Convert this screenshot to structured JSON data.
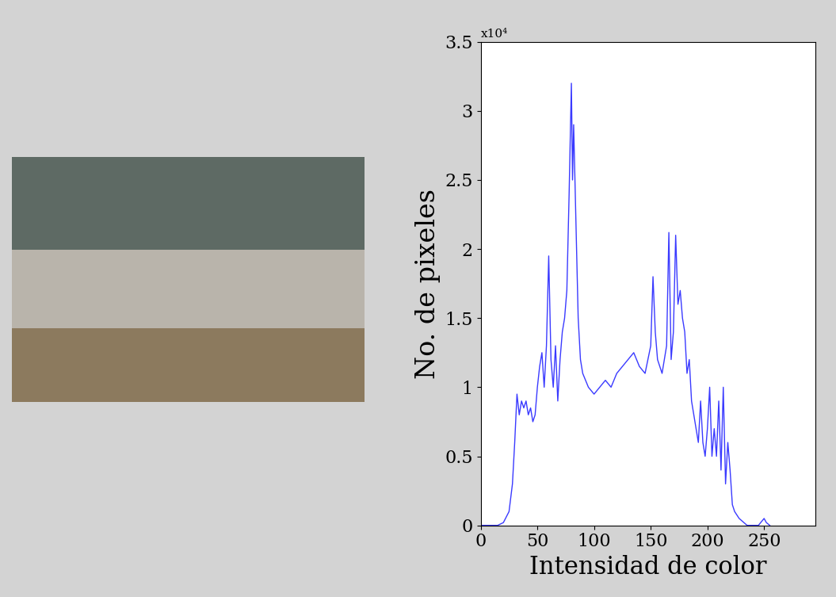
{
  "chart_data": {
    "type": "line",
    "x_label": "Intensidad de color",
    "y_label": "No. de pixeles",
    "annotation": "x10⁴",
    "color": "#3a3aff",
    "x": [
      0,
      5,
      10,
      15,
      20,
      25,
      28,
      30,
      32,
      34,
      36,
      38,
      40,
      42,
      44,
      46,
      48,
      50,
      52,
      54,
      56,
      58,
      60,
      62,
      64,
      66,
      68,
      70,
      72,
      74,
      76,
      78,
      80,
      81,
      82,
      84,
      86,
      88,
      90,
      95,
      100,
      105,
      110,
      115,
      120,
      125,
      130,
      135,
      140,
      145,
      150,
      152,
      154,
      156,
      160,
      164,
      166,
      168,
      170,
      172,
      174,
      176,
      178,
      180,
      182,
      184,
      186,
      188,
      190,
      192,
      194,
      196,
      198,
      200,
      202,
      204,
      206,
      208,
      210,
      212,
      214,
      216,
      218,
      220,
      222,
      224,
      228,
      235,
      245,
      250,
      252,
      255
    ],
    "values": [
      0,
      0,
      0,
      0,
      0.02,
      0.1,
      0.3,
      0.6,
      0.95,
      0.8,
      0.9,
      0.85,
      0.9,
      0.8,
      0.85,
      0.75,
      0.8,
      1.0,
      1.15,
      1.25,
      1.0,
      1.3,
      1.95,
      1.2,
      1.0,
      1.3,
      0.9,
      1.2,
      1.4,
      1.5,
      1.7,
      2.4,
      3.2,
      2.5,
      2.9,
      2.2,
      1.5,
      1.2,
      1.1,
      1.0,
      0.95,
      1.0,
      1.05,
      1.0,
      1.1,
      1.15,
      1.2,
      1.25,
      1.15,
      1.1,
      1.3,
      1.8,
      1.4,
      1.2,
      1.1,
      1.3,
      2.12,
      1.2,
      1.4,
      2.1,
      1.6,
      1.7,
      1.5,
      1.4,
      1.1,
      1.2,
      0.9,
      0.8,
      0.7,
      0.6,
      0.9,
      0.6,
      0.5,
      0.7,
      1.0,
      0.5,
      0.7,
      0.5,
      0.9,
      0.4,
      1.0,
      0.3,
      0.6,
      0.4,
      0.15,
      0.1,
      0.05,
      0.0,
      0.0,
      0.05,
      0.02,
      0
    ],
    "xlim": [
      0,
      295
    ],
    "xticks": [
      0,
      50,
      100,
      150,
      200,
      250
    ],
    "ylim": [
      0,
      3.5
    ],
    "yticks": [
      0,
      0.5,
      1,
      1.5,
      2,
      2.5,
      3,
      3.5
    ],
    "grid": false
  }
}
